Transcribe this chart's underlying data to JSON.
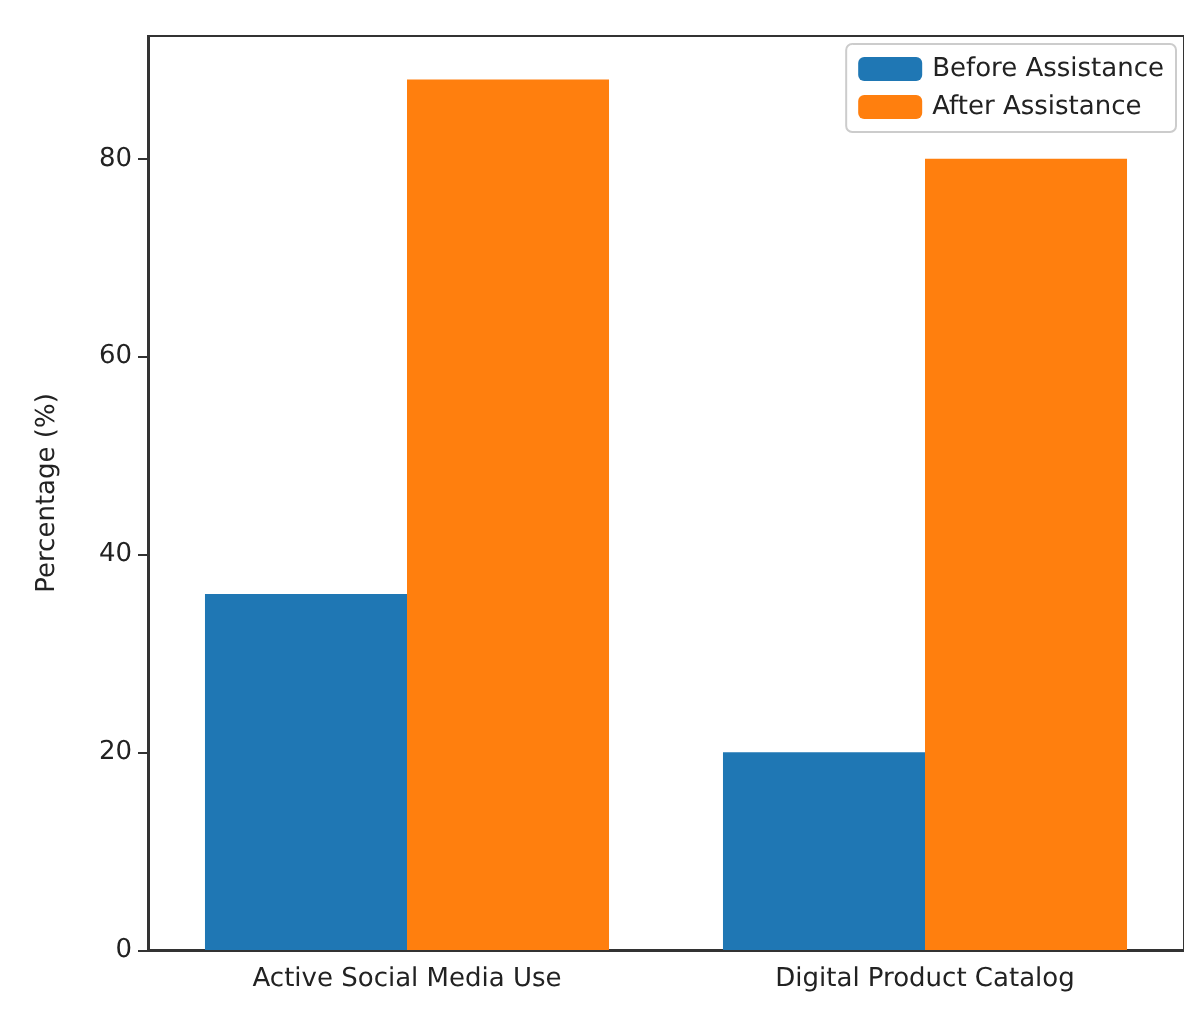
{
  "chart_data": {
    "type": "bar",
    "ylabel": "Percentage (%)",
    "categories": [
      "Active Social Media Use",
      "Digital Product Catalog"
    ],
    "series": [
      {
        "name": "Before Assistance",
        "color": "#1f77b4",
        "values": [
          36,
          20
        ]
      },
      {
        "name": "After Assistance",
        "color": "#ff7f0e",
        "values": [
          88,
          80
        ]
      }
    ],
    "ylim": [
      0,
      92.4
    ],
    "yticks": [
      0,
      20,
      40,
      60,
      80
    ],
    "grid": false,
    "legend": "top right"
  }
}
